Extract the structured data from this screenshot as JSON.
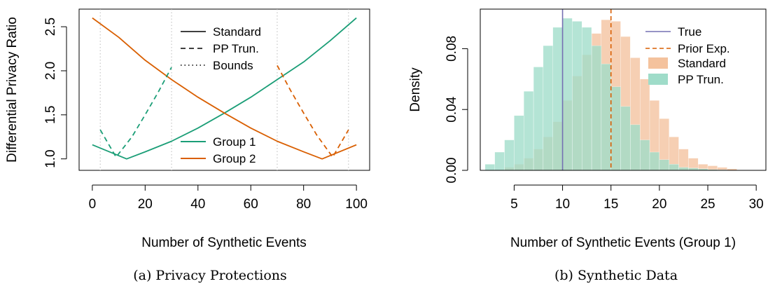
{
  "panels": [
    {
      "caption": "(a) Privacy Protections",
      "chart_data": {
        "type": "line",
        "xlabel": "Number of Synthetic Events",
        "ylabel": "Differential Privacy Ratio",
        "xlim": [
          -5,
          105
        ],
        "ylim": [
          0.87,
          2.7
        ],
        "xticks": [
          0,
          20,
          40,
          60,
          80,
          100
        ],
        "yticks": [
          1.0,
          1.5,
          2.0,
          2.5
        ],
        "xtick_labels": [
          "0",
          "20",
          "40",
          "60",
          "80",
          "100"
        ],
        "ytick_labels": [
          "1.0",
          "1.5",
          "2.0",
          "2.5"
        ],
        "colors": {
          "group1": "#1b9e77",
          "group2": "#d95f02"
        },
        "legend_linetype": [
          "Standard",
          "PP Trun.",
          "Bounds"
        ],
        "legend_groups": [
          "Group 1",
          "Group 2"
        ],
        "bounds_x": [
          3,
          30,
          70,
          97
        ],
        "series": [
          {
            "name": "Group 1",
            "linetype": "solid",
            "color": "#1b9e77",
            "x": [
              0,
              13,
              20,
              30,
              40,
              50,
              60,
              70,
              80,
              90,
              100
            ],
            "y": [
              1.16,
              1.0,
              1.08,
              1.2,
              1.35,
              1.52,
              1.7,
              1.9,
              2.1,
              2.34,
              2.6
            ]
          },
          {
            "name": "Group 2",
            "linetype": "solid",
            "color": "#d95f02",
            "x": [
              0,
              10,
              20,
              30,
              40,
              50,
              60,
              70,
              80,
              87,
              100
            ],
            "y": [
              2.6,
              2.38,
              2.12,
              1.9,
              1.7,
              1.52,
              1.35,
              1.2,
              1.08,
              1.0,
              1.16
            ]
          },
          {
            "name": "Group 1",
            "linetype": "dashed",
            "color": "#1b9e77",
            "x": [
              3,
              9,
              15,
              20,
              25,
              30
            ],
            "y": [
              1.33,
              1.02,
              1.25,
              1.5,
              1.76,
              2.04
            ]
          },
          {
            "name": "Group 2",
            "linetype": "dashed",
            "color": "#d95f02",
            "x": [
              70,
              75,
              80,
              85,
              91,
              97
            ],
            "y": [
              2.06,
              1.78,
              1.52,
              1.27,
              1.02,
              1.33
            ]
          }
        ]
      }
    },
    {
      "caption": "(b) Synthetic Data",
      "chart_data": {
        "type": "bar",
        "xlabel": "Number of Synthetic Events (Group 1)",
        "ylabel": "Density",
        "xlim": [
          1.5,
          31
        ],
        "ylim": [
          0,
          0.106
        ],
        "xticks": [
          5,
          10,
          15,
          20,
          25,
          30
        ],
        "yticks": [
          0.0,
          0.04,
          0.08
        ],
        "xtick_labels": [
          "5",
          "10",
          "15",
          "20",
          "25",
          "30"
        ],
        "ytick_labels": [
          "0.00",
          "0.04",
          "0.08"
        ],
        "bin_width": 1,
        "vlines": [
          {
            "name": "True",
            "x": 10,
            "color": "#7570b3",
            "linetype": "solid"
          },
          {
            "name": "Prior Exp.",
            "x": 15,
            "color": "#d95f02",
            "linetype": "dashed"
          }
        ],
        "legend": [
          "True",
          "Prior Exp.",
          "Standard",
          "PP Trun."
        ],
        "series": [
          {
            "name": "Standard",
            "color": "#f4c29d",
            "bin_starts": [
              3,
              4,
              5,
              6,
              7,
              8,
              9,
              10,
              11,
              12,
              13,
              14,
              15,
              16,
              17,
              18,
              19,
              20,
              21,
              22,
              23,
              24,
              25,
              26,
              27,
              28,
              29,
              30
            ],
            "values": [
              0.0,
              0.002,
              0.004,
              0.008,
              0.014,
              0.022,
              0.032,
              0.046,
              0.062,
              0.076,
              0.09,
              0.099,
              0.098,
              0.088,
              0.074,
              0.06,
              0.046,
              0.034,
              0.022,
              0.014,
              0.008,
              0.004,
              0.003,
              0.002,
              0.001,
              0.0,
              0.0,
              0.0
            ]
          },
          {
            "name": "PP Trun.",
            "color": "#9fdcc9",
            "bin_starts": [
              2,
              3,
              4,
              5,
              6,
              7,
              8,
              9,
              10,
              11,
              12,
              13,
              14,
              15,
              16,
              17,
              18,
              19,
              20,
              21,
              22,
              23,
              24,
              25,
              26,
              27,
              28,
              29
            ],
            "values": [
              0.004,
              0.012,
              0.02,
              0.036,
              0.052,
              0.068,
              0.082,
              0.094,
              0.1,
              0.098,
              0.094,
              0.082,
              0.07,
              0.055,
              0.042,
              0.03,
              0.02,
              0.012,
              0.007,
              0.004,
              0.002,
              0.0015,
              0.001,
              0.0005,
              0.0004,
              0.0002,
              0.0001,
              0.0
            ]
          }
        ]
      }
    }
  ]
}
